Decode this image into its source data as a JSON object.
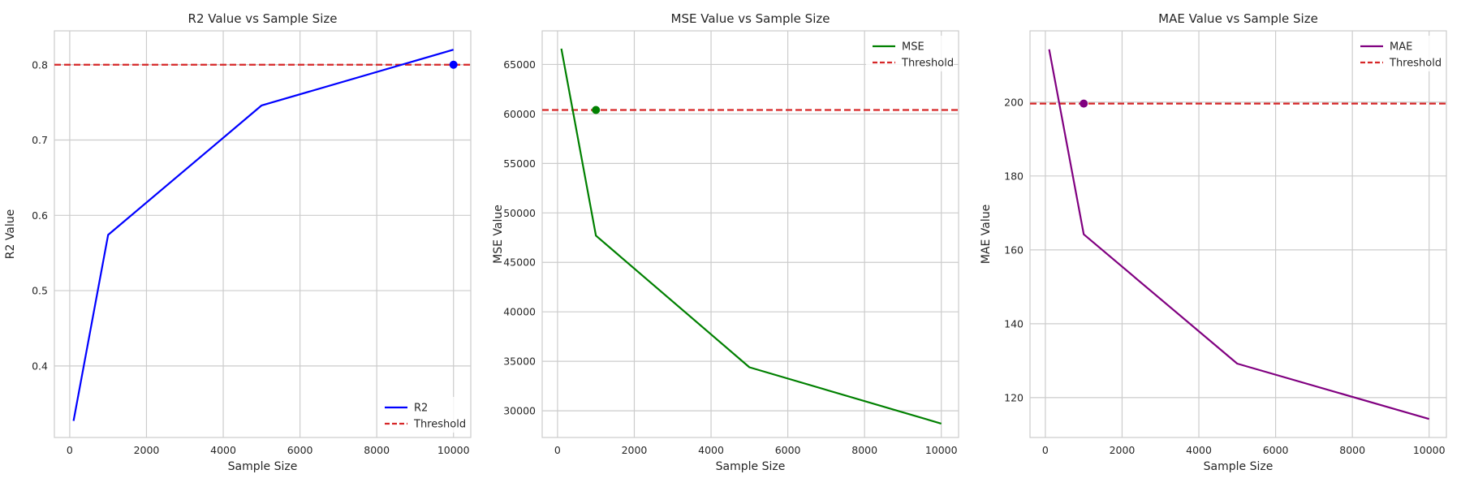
{
  "chart_data": [
    {
      "type": "line",
      "title": "R2 Value vs Sample Size",
      "xlabel": "Sample Size",
      "ylabel": "R2 Value",
      "x": [
        100,
        1000,
        5000,
        10000
      ],
      "series": [
        {
          "name": "R2",
          "values": [
            0.327,
            0.574,
            0.746,
            0.82
          ],
          "color": "#0000ff"
        }
      ],
      "threshold": {
        "name": "Threshold",
        "value": 0.8,
        "color": "#d62728"
      },
      "marker": {
        "x": 10000,
        "y": 0.8,
        "color": "#0000ff"
      },
      "xlim": [
        -400,
        10450
      ],
      "ylim": [
        0.305,
        0.845
      ],
      "xticks": [
        0,
        2000,
        4000,
        6000,
        8000,
        10000
      ],
      "yticks": [
        0.4,
        0.5,
        0.6,
        0.7,
        0.8
      ],
      "ytick_labels": [
        "0.4",
        "0.5",
        "0.6",
        "0.7",
        "0.8"
      ],
      "grid": true,
      "legend_placement": "lower-right"
    },
    {
      "type": "line",
      "title": "MSE Value vs Sample Size",
      "xlabel": "Sample Size",
      "ylabel": "MSE Value",
      "x": [
        100,
        1000,
        5000,
        10000
      ],
      "series": [
        {
          "name": "MSE",
          "values": [
            66600,
            47700,
            34400,
            28700
          ],
          "color": "#008000"
        }
      ],
      "threshold": {
        "name": "Threshold",
        "value": 60400,
        "color": "#d62728"
      },
      "marker": {
        "x": 1000,
        "y": 60400,
        "color": "#008000"
      },
      "xlim": [
        -400,
        10450
      ],
      "ylim": [
        27300,
        68400
      ],
      "xticks": [
        0,
        2000,
        4000,
        6000,
        8000,
        10000
      ],
      "yticks": [
        30000,
        35000,
        40000,
        45000,
        50000,
        55000,
        60000,
        65000
      ],
      "ytick_labels": [
        "30000",
        "35000",
        "40000",
        "45000",
        "50000",
        "55000",
        "60000",
        "65000"
      ],
      "grid": true,
      "legend_placement": "upper-right"
    },
    {
      "type": "line",
      "title": "MAE Value vs Sample Size",
      "xlabel": "Sample Size",
      "ylabel": "MAE Value",
      "x": [
        100,
        1000,
        5000,
        10000
      ],
      "series": [
        {
          "name": "MAE",
          "values": [
            214.3,
            164.2,
            129.2,
            114.2
          ],
          "color": "#800080"
        }
      ],
      "threshold": {
        "name": "Threshold",
        "value": 199.6,
        "color": "#d62728"
      },
      "marker": {
        "x": 1000,
        "y": 199.6,
        "color": "#800080"
      },
      "xlim": [
        -400,
        10450
      ],
      "ylim": [
        109.2,
        219.3
      ],
      "xticks": [
        0,
        2000,
        4000,
        6000,
        8000,
        10000
      ],
      "yticks": [
        120,
        140,
        160,
        180,
        200
      ],
      "ytick_labels": [
        "120",
        "140",
        "160",
        "180",
        "200"
      ],
      "grid": true,
      "legend_placement": "upper-right"
    }
  ]
}
